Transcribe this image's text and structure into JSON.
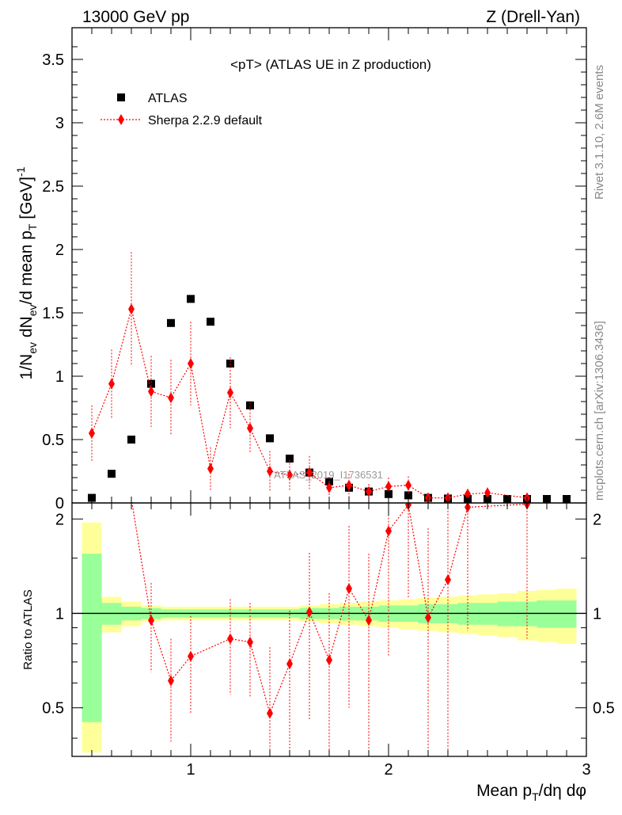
{
  "header": {
    "left": "13000 GeV pp",
    "right": "Z (Drell-Yan)"
  },
  "side": {
    "top": "Rivet 3.1.10,  2.6M events",
    "bottom": "mcplots.cern.ch [arXiv:1306.3436]"
  },
  "watermark": "ATLAS_2019_I1736531",
  "chart_data": [
    {
      "type": "scatter",
      "title": "<pT> (ATLAS UE in Z production)",
      "xlabel": "Mean p_T/dη dφ",
      "ylabel": "1/N_ev dN_ev/d mean p_T [GeV]^-1",
      "xlim": [
        0.4,
        3.0
      ],
      "ylim": [
        0,
        3.75
      ],
      "yticks": [
        "0",
        "0.5",
        "1",
        "1.5",
        "2",
        "2.5",
        "3",
        "3.5"
      ],
      "xticks": [
        "1",
        "2",
        "3"
      ],
      "legend": {
        "position": "top-left",
        "entries": [
          "ATLAS",
          "Sherpa 2.2.9 default"
        ]
      },
      "series": [
        {
          "name": "ATLAS",
          "x": [
            0.5,
            0.6,
            0.7,
            0.8,
            0.9,
            1.0,
            1.1,
            1.2,
            1.3,
            1.4,
            1.5,
            1.6,
            1.7,
            1.8,
            1.9,
            2.0,
            2.1,
            2.2,
            2.3,
            2.4,
            2.5,
            2.6,
            2.7,
            2.8,
            2.9
          ],
          "y": [
            0.04,
            0.23,
            0.5,
            0.94,
            1.42,
            1.61,
            1.43,
            1.1,
            0.77,
            0.51,
            0.35,
            0.24,
            0.17,
            0.12,
            0.09,
            0.07,
            0.06,
            0.04,
            0.035,
            0.03,
            0.025,
            0.015,
            0.01,
            0.008,
            0.005
          ]
        },
        {
          "name": "Sherpa 2.2.9 default",
          "x": [
            0.5,
            0.6,
            0.7,
            0.8,
            0.9,
            1.0,
            1.1,
            1.2,
            1.3,
            1.4,
            1.5,
            1.6,
            1.7,
            1.8,
            1.9,
            2.0,
            2.1,
            2.2,
            2.3,
            2.4,
            2.5,
            2.7
          ],
          "y": [
            0.55,
            0.94,
            1.53,
            0.88,
            0.83,
            1.1,
            0.27,
            0.87,
            0.59,
            0.25,
            0.22,
            0.24,
            0.12,
            0.14,
            0.09,
            0.13,
            0.14,
            0.04,
            0.04,
            0.07,
            0.08,
            0.04
          ],
          "err": [
            0.22,
            0.27,
            0.45,
            0.28,
            0.3,
            0.33,
            0.17,
            0.28,
            0.2,
            0.16,
            0.12,
            0.13,
            0.08,
            0.09,
            0.06,
            0.07,
            0.07,
            0.04,
            0.04,
            0.04,
            0.04,
            0.03
          ]
        }
      ]
    },
    {
      "type": "scatter",
      "ylabel": "Ratio to ATLAS",
      "ylim": [
        0.35,
        2.25
      ],
      "yticks": [
        "0.5",
        "1",
        "2"
      ],
      "band_x": [
        0.45,
        0.55,
        0.65,
        0.75,
        0.85,
        0.95,
        1.05,
        1.15,
        1.25,
        1.35,
        1.45,
        1.55,
        1.65,
        1.75,
        1.85,
        1.95,
        2.05,
        2.15,
        2.25,
        2.35,
        2.45,
        2.55,
        2.65,
        2.75,
        2.85,
        2.95
      ],
      "band_stat": [
        0.55,
        0.08,
        0.05,
        0.04,
        0.03,
        0.03,
        0.03,
        0.03,
        0.03,
        0.03,
        0.03,
        0.04,
        0.04,
        0.05,
        0.05,
        0.06,
        0.06,
        0.07,
        0.07,
        0.08,
        0.08,
        0.09,
        0.09,
        0.1,
        0.1
      ],
      "band_syst": [
        0.95,
        0.13,
        0.09,
        0.06,
        0.05,
        0.05,
        0.05,
        0.05,
        0.05,
        0.05,
        0.05,
        0.06,
        0.07,
        0.08,
        0.09,
        0.1,
        0.11,
        0.12,
        0.13,
        0.14,
        0.15,
        0.16,
        0.18,
        0.19,
        0.2
      ],
      "series": [
        {
          "name": "Sherpa 2.2.9 default / ATLAS",
          "x": [
            0.8,
            0.9,
            1.0,
            1.2,
            1.3,
            1.4,
            1.5,
            1.6,
            1.7,
            1.8,
            1.9,
            2.0,
            2.1,
            2.2,
            2.3,
            2.4,
            2.7
          ],
          "y": [
            0.95,
            0.61,
            0.73,
            0.83,
            0.81,
            0.48,
            0.69,
            1.01,
            0.71,
            1.2,
            0.95,
            1.83,
            2.22,
            0.97,
            1.28,
            2.18,
            2.23
          ],
          "err": [
            0.3,
            0.22,
            0.25,
            0.28,
            0.27,
            0.3,
            0.33,
            0.55,
            0.45,
            0.7,
            0.6,
            1.1,
            1.1,
            0.9,
            1.0,
            1.3,
            1.4
          ]
        }
      ]
    }
  ]
}
